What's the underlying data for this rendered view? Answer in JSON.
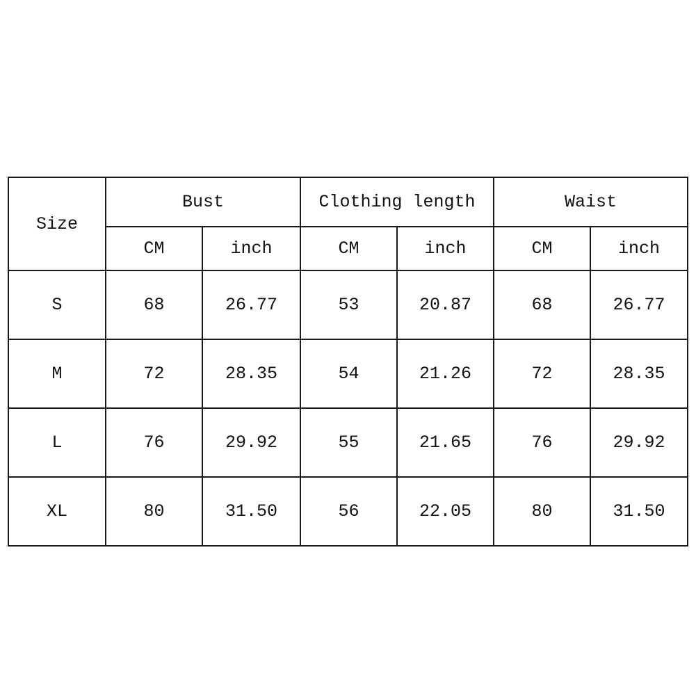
{
  "table": {
    "size_header": "Size",
    "groups": [
      "Bust",
      "Clothing length",
      "Waist"
    ],
    "units": [
      "CM",
      "inch",
      "CM",
      "inch",
      "CM",
      "inch"
    ],
    "rows": [
      [
        "S",
        "68",
        "26.77",
        "53",
        "20.87",
        "68",
        "26.77"
      ],
      [
        "M",
        "72",
        "28.35",
        "54",
        "21.26",
        "72",
        "28.35"
      ],
      [
        "L",
        "76",
        "29.92",
        "55",
        "21.65",
        "76",
        "29.92"
      ],
      [
        "XL",
        "80",
        "31.50",
        "56",
        "22.05",
        "80",
        "31.50"
      ]
    ]
  }
}
